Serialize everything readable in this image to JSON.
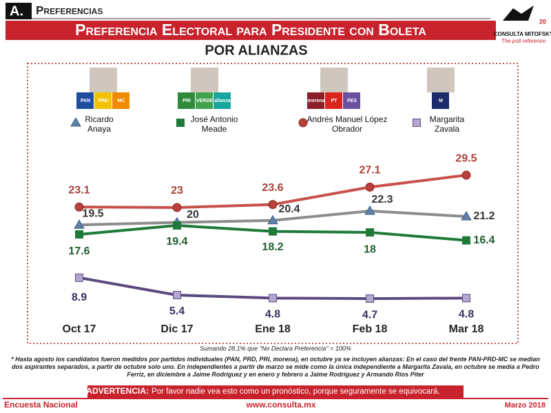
{
  "header": {
    "section": "A.",
    "section_title": "Preferencias",
    "title": "Preferencia Electoral para Presidente con Boleta",
    "subtitle": "POR ALIANZAS"
  },
  "logo": {
    "name": "CONSULTA MITOFSKY",
    "tagline": "The poll reference",
    "badge": "20"
  },
  "party_logos": [
    [
      "PAN",
      "PRD",
      "MC"
    ],
    [
      "PRI",
      "VERDE",
      "alianza"
    ],
    [
      "morena",
      "PT",
      "PES"
    ],
    [
      "M"
    ]
  ],
  "chart_data": {
    "type": "line",
    "categories": [
      "Oct 17",
      "Dic 17",
      "Ene 18",
      "Feb 18",
      "Mar 18"
    ],
    "ylim": [
      0,
      32
    ],
    "series": [
      {
        "name": "Ricardo Anaya",
        "color": "#8c8c8c",
        "marker": "triangle",
        "marker_color": "#5d80a8",
        "values": [
          19.5,
          20.0,
          20.4,
          22.3,
          21.2
        ]
      },
      {
        "name": "José Antonio Meade",
        "color": "#1f7a3a",
        "marker": "square",
        "marker_color": "#1f7a3a",
        "values": [
          17.6,
          19.4,
          18.2,
          18.0,
          16.4
        ]
      },
      {
        "name": "Andrés Manuel López Obrador",
        "color": "#c8504a",
        "marker": "circle",
        "marker_color": "#b83f3a",
        "values": [
          23.1,
          23.0,
          23.6,
          27.1,
          29.5
        ]
      },
      {
        "name": "Margarita Zavala",
        "color": "#5a4a7e",
        "marker": "square",
        "marker_color": "#b3a6cf",
        "values": [
          8.9,
          5.4,
          4.8,
          4.7,
          4.8
        ]
      }
    ]
  },
  "notes": {
    "sum": "Sumando 28.1% que \"No Declara Preferencia\" = 100%",
    "footnote": "* Hasta agosto los candidatos fueron medidos por partidos individuales (PAN, PRD, PRI, morena), en octubre ya se incluyen alianzas: En el caso del frente PAN-PRD-MC se median dos aspirantes separados, a partir de octubre solo uno. En independientes a partir de marzo se mide como la única independiente a Margarita Zavala, en octubre se media a Pedro Ferriz, en diciembre a Jaime Rodríguez y en enero y febrero a Jaime Rodríguez y Armando Ríos Piter",
    "warning_label": "ADVERTENCIA:",
    "warning": "Por favor nadie vea esto como un pronóstico, porque seguramente se equivocará."
  },
  "footer": {
    "left": "Encuesta Nacional",
    "center": "www.consulta.mx",
    "right": "Marzo 2018"
  }
}
